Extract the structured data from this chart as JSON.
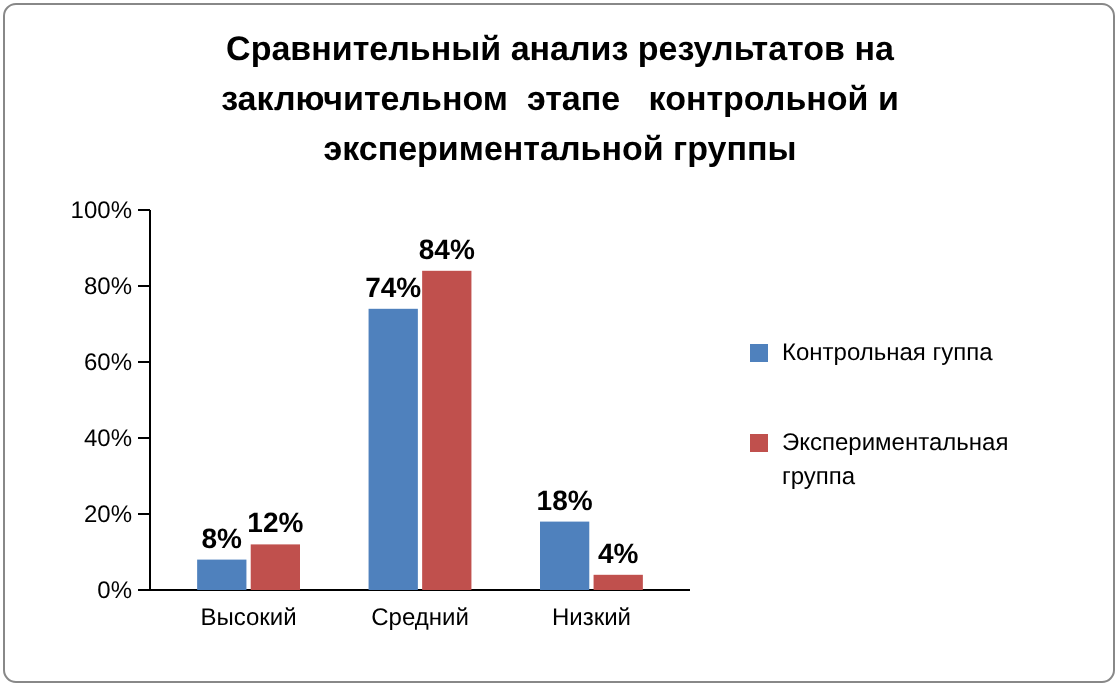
{
  "chart_data": {
    "type": "bar",
    "title": "Сравнительный анализ результатов на\nзаключительном  этапе   контрольной и\nэкспериментальной группы",
    "categories": [
      "Высокий",
      "Средний",
      "Низкий"
    ],
    "series": [
      {
        "name": "Контрольная гуппа",
        "color": "#4f81bd",
        "values": [
          8,
          74,
          18
        ],
        "value_labels": [
          "8%",
          "74%",
          "18%"
        ]
      },
      {
        "name": "Экспериментальная группа",
        "color": "#c0504d",
        "values": [
          12,
          84,
          4
        ],
        "value_labels": [
          "12%",
          "84%",
          "4%"
        ]
      }
    ],
    "ylim": [
      0,
      100
    ],
    "yticks": [
      {
        "value": 0,
        "label": "0%"
      },
      {
        "value": 20,
        "label": "20%"
      },
      {
        "value": 40,
        "label": "40%"
      },
      {
        "value": 60,
        "label": "60%"
      },
      {
        "value": 80,
        "label": "80%"
      },
      {
        "value": 100,
        "label": "100%"
      }
    ],
    "legend": "right"
  }
}
